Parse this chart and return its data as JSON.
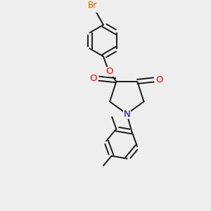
{
  "bg_color": "#eeeeee",
  "bond_color": "#1a1a1a",
  "bond_width": 1.4,
  "atom_colors": {
    "Br": "#cc6600",
    "O": "#ff0000",
    "N": "#0000cc",
    "C": "#1a1a1a"
  },
  "font_size": 8.5,
  "fig_size": [
    3.0,
    3.0
  ],
  "dpi": 100,
  "xlim": [
    -1.5,
    1.7
  ],
  "ylim": [
    -2.6,
    2.0
  ]
}
